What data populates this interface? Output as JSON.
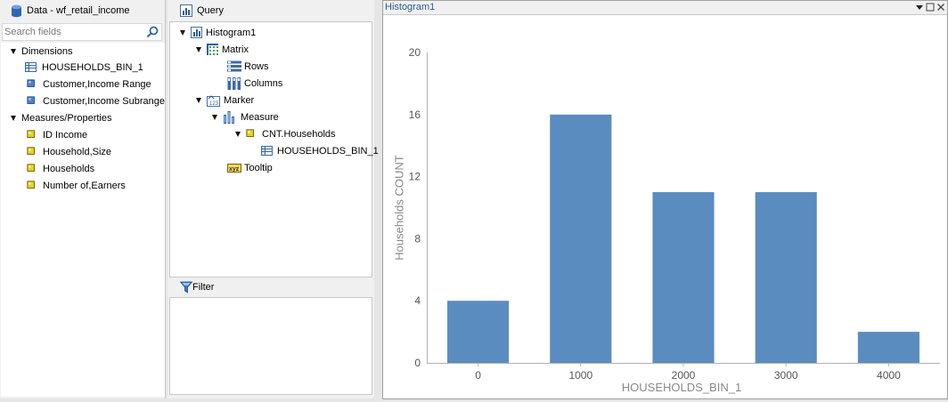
{
  "data_panel": {
    "title": "Data - wf_retail_income",
    "search_placeholder": "Search fields",
    "dimensions_label": "Dimensions",
    "dimensions": [
      "HOUSEHOLDS_BIN_1",
      "Customer,Income Range",
      "Customer,Income Subrange"
    ],
    "measures_label": "Measures/Properties",
    "measures": [
      "ID Income",
      "Household,Size",
      "Households",
      "Number of,Earners"
    ]
  },
  "query_panel": {
    "title": "Query",
    "tree": {
      "root": "Histogram1",
      "matrix": "Matrix",
      "rows": "Rows",
      "columns": "Columns",
      "marker": "Marker",
      "measure": "Measure",
      "measure_field": "CNT.Households",
      "bin_field": "HOUSEHOLDS_BIN_1",
      "tooltip": "Tooltip"
    },
    "filter_title": "Filter"
  },
  "chart_panel": {
    "title": "Histogram1"
  },
  "colors": {
    "bar": "#5b8cbf",
    "accent": "#2e5a8c"
  },
  "icons": {
    "data_source": "database-icon",
    "search": "search-icon",
    "query": "chart-bar-icon",
    "filter": "funnel-icon",
    "dimension_bin": "table-icon",
    "dimension": "blue-square-icon",
    "measure": "yellow-square-icon",
    "matrix": "grid-icon",
    "rows": "rows-icon",
    "columns": "columns-icon",
    "marker": "marker-icon",
    "measure_group": "bars-icon",
    "tooltip": "tooltip-icon"
  },
  "chart_data": {
    "type": "bar",
    "categories": [
      "0",
      "1000",
      "2000",
      "3000",
      "4000"
    ],
    "values": [
      4,
      16,
      11,
      11,
      2
    ],
    "xlabel": "HOUSEHOLDS_BIN_1",
    "ylabel": "Households COUNT",
    "ylim": [
      0,
      20
    ],
    "yticks": [
      0,
      4,
      8,
      12,
      16,
      20
    ],
    "grid": false
  }
}
